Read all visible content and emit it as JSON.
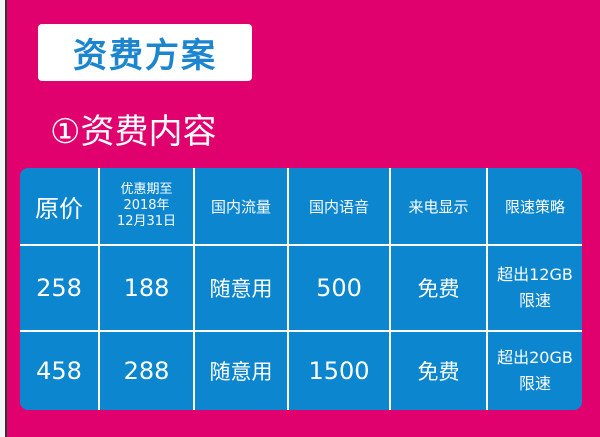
{
  "title": "资费方案",
  "section_heading": "①资费内容",
  "colors": {
    "background": "#e0006e",
    "table": "#0b86cf",
    "title_text": "#1c85cf"
  },
  "table": {
    "headers": [
      "原价",
      "优惠期至\n2018年\n12月31日",
      "国内流量",
      "国内语音",
      "来电显示",
      "限速策略"
    ],
    "rows": [
      [
        "258",
        "188",
        "随意用",
        "500",
        "免费",
        "超出12GB\n限速"
      ],
      [
        "458",
        "288",
        "随意用",
        "1500",
        "免费",
        "超出20GB\n限速"
      ]
    ]
  }
}
